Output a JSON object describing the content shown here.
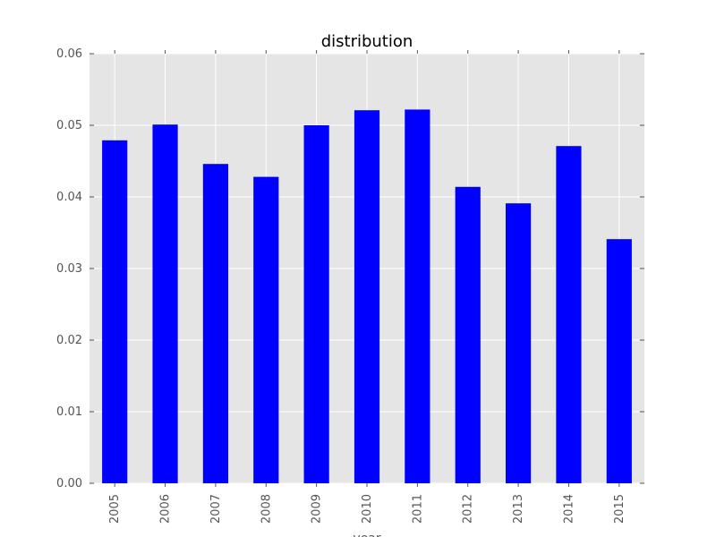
{
  "chart_data": {
    "type": "bar",
    "title": "distribution",
    "xlabel": "year",
    "ylabel": "",
    "categories": [
      "2005",
      "2006",
      "2007",
      "2008",
      "2009",
      "2010",
      "2011",
      "2012",
      "2013",
      "2014",
      "2015"
    ],
    "values": [
      0.0479,
      0.0501,
      0.0446,
      0.0428,
      0.05,
      0.0521,
      0.0522,
      0.0414,
      0.0391,
      0.0471,
      0.0341
    ],
    "ylim": [
      0,
      0.06
    ],
    "yticks": [
      "0.00",
      "0.01",
      "0.02",
      "0.03",
      "0.04",
      "0.05",
      "0.06"
    ],
    "grid": true,
    "legend": "none",
    "colors": {
      "bar": "#0000ff",
      "plot_bg": "#e5e5e5",
      "grid": "#ffffff"
    }
  }
}
